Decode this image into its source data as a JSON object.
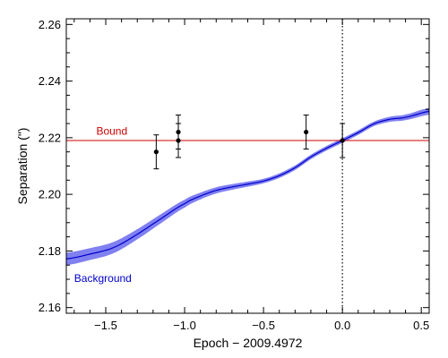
{
  "chart_data": {
    "type": "scatter",
    "title": "",
    "xlabel": "Epoch − 2009.4972",
    "ylabel": "Separation (\")",
    "xlim": [
      -1.75,
      0.55
    ],
    "ylim": [
      2.158,
      2.262
    ],
    "x_ticks": [
      -1.5,
      -1.0,
      -0.5,
      0.0,
      0.5
    ],
    "x_tick_labels": [
      "−1.5",
      "−1.0",
      "−0.5",
      "0.0",
      "0.5"
    ],
    "y_ticks": [
      2.16,
      2.18,
      2.2,
      2.22,
      2.24,
      2.26
    ],
    "y_tick_labels": [
      "2.16",
      "2.18",
      "2.20",
      "2.22",
      "2.24",
      "2.26"
    ],
    "grid": false,
    "series": [
      {
        "name": "Bound",
        "kind": "horizontal-line",
        "color": "#cc0000",
        "y": 2.219
      },
      {
        "name": "Background",
        "kind": "line-with-band",
        "color": "#0000cc",
        "band_color": "#8080f0",
        "x": [
          -1.75,
          -1.6,
          -1.45,
          -1.3,
          -1.15,
          -1.0,
          -0.9,
          -0.8,
          -0.7,
          -0.6,
          -0.5,
          -0.4,
          -0.3,
          -0.2,
          -0.1,
          0.0,
          0.1,
          0.2,
          0.3,
          0.4,
          0.55
        ],
        "y": [
          2.1772,
          2.1789,
          2.1812,
          2.1859,
          2.1914,
          2.1967,
          2.1994,
          2.2014,
          2.2026,
          2.2036,
          2.2047,
          2.2066,
          2.2094,
          2.2132,
          2.2163,
          2.219,
          2.2218,
          2.2249,
          2.2265,
          2.2272,
          2.2293
        ],
        "band_halfwidth": [
          0.0022,
          0.0021,
          0.002,
          0.0018,
          0.0016,
          0.0014,
          0.0012,
          0.0011,
          0.001,
          0.0009,
          0.0008,
          0.0008,
          0.0008,
          0.0008,
          0.0008,
          0.0008,
          0.0008,
          0.0008,
          0.0009,
          0.001,
          0.0012
        ]
      },
      {
        "name": "",
        "kind": "errorbar-points",
        "color": "#000000",
        "points": [
          {
            "x": -1.18,
            "y": 2.215,
            "err": 0.006
          },
          {
            "x": -1.04,
            "y": 2.222,
            "err": 0.006
          },
          {
            "x": -1.04,
            "y": 2.219,
            "err": 0.006
          },
          {
            "x": -0.23,
            "y": 2.222,
            "err": 0.006
          },
          {
            "x": 0.0,
            "y": 2.219,
            "err": 0.006
          }
        ]
      }
    ],
    "reference_lines": [
      {
        "kind": "vertical-dotted",
        "x": 0.0,
        "color": "#000000"
      }
    ],
    "annotations": [
      {
        "text": "Bound",
        "color": "#cc0000",
        "anchor_x": -1.56,
        "anchor_y": 2.221
      },
      {
        "text": "Background",
        "color": "#0000cc",
        "anchor_x": -1.7,
        "anchor_y": 2.169
      }
    ]
  }
}
